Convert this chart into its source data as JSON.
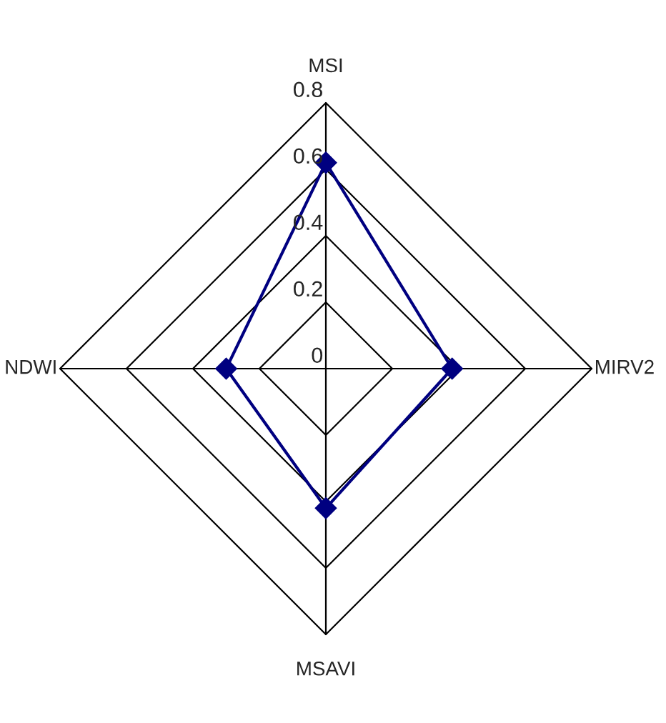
{
  "chart_data": {
    "type": "radar",
    "categories": [
      "MSI",
      "MIRV2",
      "MSAVI",
      "NDWI"
    ],
    "series": [
      {
        "color": "#000080",
        "values": [
          0.62,
          0.38,
          0.42,
          0.3
        ]
      }
    ],
    "ylim": [
      0,
      0.8
    ],
    "yticks": [
      0,
      0.2,
      0.4,
      0.6,
      0.8
    ],
    "marker": "diamond",
    "grid": true
  }
}
